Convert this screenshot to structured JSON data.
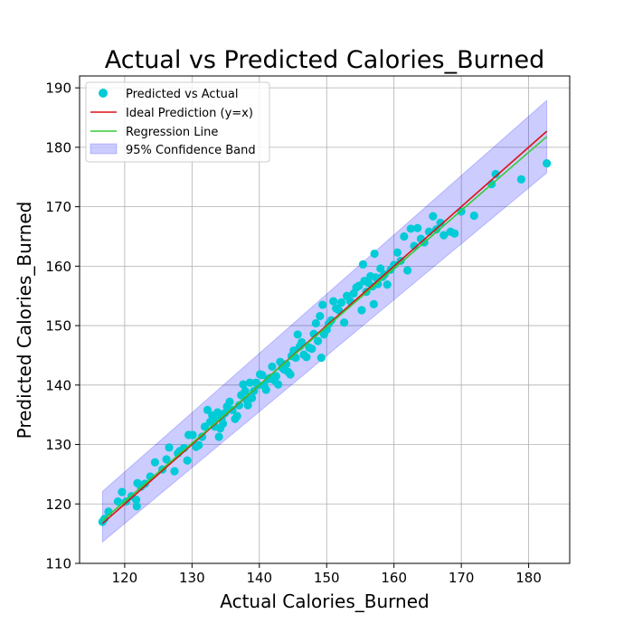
{
  "chart_data": {
    "type": "scatter",
    "title": "Actual vs Predicted Calories_Burned",
    "xlabel": "Actual Calories_Burned",
    "ylabel": "Predicted Calories_Burned",
    "xlim": [
      113.3,
      186.1
    ],
    "ylim": [
      110,
      192
    ],
    "xticks": [
      120,
      130,
      140,
      150,
      160,
      170,
      180
    ],
    "yticks": [
      110,
      120,
      130,
      140,
      150,
      160,
      170,
      180,
      190
    ],
    "grid": true,
    "legend_position": "top-left",
    "legend": [
      {
        "label": "Predicted vs Actual",
        "kind": "marker",
        "color": "#00cbd6"
      },
      {
        "label": "Ideal Prediction (y=x)",
        "kind": "line",
        "color": "#dd1111"
      },
      {
        "label": "Regression Line",
        "kind": "line",
        "color": "#33cc33"
      },
      {
        "label": "95% Confidence Band",
        "kind": "patch",
        "color": "#0000ff"
      }
    ],
    "ideal_line": {
      "x": [
        116.7,
        182.7
      ],
      "y": [
        116.7,
        182.7
      ],
      "color": "#dd1111"
    },
    "regression_line": {
      "x": [
        116.7,
        182.7
      ],
      "y": [
        117.2,
        181.8
      ],
      "color": "#33cc33"
    },
    "confidence_band": {
      "x": [
        116.7,
        182.7
      ],
      "lower": [
        113.6,
        175.7
      ],
      "upper": [
        122.1,
        187.9
      ],
      "color": "#0000ff",
      "opacity": 0.2
    },
    "series": [
      {
        "name": "Predicted vs Actual",
        "color": "#00cbd6",
        "points": [
          [
            116.7,
            117.0
          ],
          [
            117.0,
            117.5
          ],
          [
            117.6,
            118.7
          ],
          [
            119.0,
            120.4
          ],
          [
            119.6,
            122.0
          ],
          [
            120.2,
            120.4
          ],
          [
            121.0,
            121.3
          ],
          [
            121.7,
            120.7
          ],
          [
            121.8,
            119.6
          ],
          [
            121.9,
            123.5
          ],
          [
            122.4,
            122.9
          ],
          [
            123.0,
            123.4
          ],
          [
            123.8,
            124.6
          ],
          [
            124.5,
            127.0
          ],
          [
            125.6,
            125.8
          ],
          [
            126.2,
            127.5
          ],
          [
            126.6,
            129.5
          ],
          [
            127.4,
            125.5
          ],
          [
            127.9,
            128.5
          ],
          [
            128.2,
            128.9
          ],
          [
            128.8,
            129.4
          ],
          [
            129.3,
            127.3
          ],
          [
            129.5,
            131.6
          ],
          [
            130.1,
            131.6
          ],
          [
            130.6,
            129.6
          ],
          [
            131.0,
            129.9
          ],
          [
            131.5,
            131.3
          ],
          [
            131.9,
            133.0
          ],
          [
            132.3,
            135.8
          ],
          [
            132.7,
            133.8
          ],
          [
            133.0,
            134.9
          ],
          [
            133.2,
            134.4
          ],
          [
            133.4,
            133.0
          ],
          [
            133.8,
            135.4
          ],
          [
            134.0,
            131.3
          ],
          [
            134.2,
            132.7
          ],
          [
            134.4,
            134.4
          ],
          [
            134.6,
            133.5
          ],
          [
            134.9,
            135.3
          ],
          [
            135.2,
            136.4
          ],
          [
            135.6,
            137.2
          ],
          [
            136.0,
            135.8
          ],
          [
            136.4,
            134.3
          ],
          [
            136.7,
            134.8
          ],
          [
            137.0,
            136.6
          ],
          [
            137.3,
            138.3
          ],
          [
            137.6,
            140.1
          ],
          [
            137.9,
            139.0
          ],
          [
            138.1,
            137.5
          ],
          [
            138.3,
            136.6
          ],
          [
            138.6,
            140.4
          ],
          [
            138.9,
            137.8
          ],
          [
            139.2,
            139.0
          ],
          [
            139.5,
            140.4
          ],
          [
            139.8,
            140.0
          ],
          [
            140.1,
            141.8
          ],
          [
            140.4,
            141.7
          ],
          [
            140.7,
            139.9
          ],
          [
            141.0,
            139.2
          ],
          [
            141.3,
            141.0
          ],
          [
            141.6,
            141.2
          ],
          [
            141.9,
            143.1
          ],
          [
            142.2,
            140.8
          ],
          [
            142.5,
            141.5
          ],
          [
            142.8,
            140.1
          ],
          [
            143.1,
            143.9
          ],
          [
            143.4,
            142.9
          ],
          [
            143.7,
            142.6
          ],
          [
            144.0,
            143.5
          ],
          [
            144.3,
            142.2
          ],
          [
            144.6,
            141.8
          ],
          [
            144.8,
            144.9
          ],
          [
            145.1,
            145.8
          ],
          [
            145.4,
            144.6
          ],
          [
            145.7,
            148.5
          ],
          [
            146.0,
            146.5
          ],
          [
            146.3,
            147.2
          ],
          [
            146.6,
            145.1
          ],
          [
            147.0,
            144.7
          ],
          [
            147.4,
            146.3
          ],
          [
            147.8,
            146.1
          ],
          [
            148.1,
            148.6
          ],
          [
            148.4,
            150.4
          ],
          [
            148.7,
            147.4
          ],
          [
            149.0,
            151.6
          ],
          [
            149.2,
            144.6
          ],
          [
            149.4,
            153.5
          ],
          [
            149.6,
            148.5
          ],
          [
            150.0,
            149.3
          ],
          [
            150.3,
            150.3
          ],
          [
            150.7,
            150.9
          ],
          [
            151.0,
            154.1
          ],
          [
            151.4,
            152.9
          ],
          [
            151.8,
            152.6
          ],
          [
            152.2,
            153.9
          ],
          [
            152.6,
            150.5
          ],
          [
            153.0,
            155.0
          ],
          [
            153.5,
            154.1
          ],
          [
            154.0,
            155.4
          ],
          [
            154.4,
            156.4
          ],
          [
            154.8,
            156.7
          ],
          [
            155.2,
            152.6
          ],
          [
            155.4,
            160.3
          ],
          [
            155.6,
            157.5
          ],
          [
            155.9,
            155.7
          ],
          [
            156.2,
            157.2
          ],
          [
            156.5,
            158.3
          ],
          [
            156.8,
            156.6
          ],
          [
            157.0,
            153.6
          ],
          [
            157.1,
            162.1
          ],
          [
            157.3,
            158.1
          ],
          [
            157.6,
            157.0
          ],
          [
            158.0,
            159.6
          ],
          [
            158.3,
            158.2
          ],
          [
            158.6,
            158.6
          ],
          [
            159.0,
            156.9
          ],
          [
            159.5,
            159.4
          ],
          [
            160.0,
            160.2
          ],
          [
            160.5,
            162.3
          ],
          [
            161.0,
            160.9
          ],
          [
            161.5,
            165.0
          ],
          [
            162.0,
            159.3
          ],
          [
            162.5,
            166.3
          ],
          [
            163.0,
            163.4
          ],
          [
            163.5,
            166.4
          ],
          [
            164.0,
            164.6
          ],
          [
            164.5,
            164.0
          ],
          [
            165.2,
            165.8
          ],
          [
            165.8,
            168.4
          ],
          [
            166.3,
            166.2
          ],
          [
            166.9,
            167.3
          ],
          [
            167.4,
            165.2
          ],
          [
            168.4,
            165.8
          ],
          [
            169.0,
            165.5
          ],
          [
            170.0,
            169.2
          ],
          [
            171.9,
            168.5
          ],
          [
            174.5,
            173.8
          ],
          [
            175.1,
            175.5
          ],
          [
            178.9,
            174.6
          ],
          [
            182.7,
            177.3
          ]
        ]
      }
    ]
  }
}
